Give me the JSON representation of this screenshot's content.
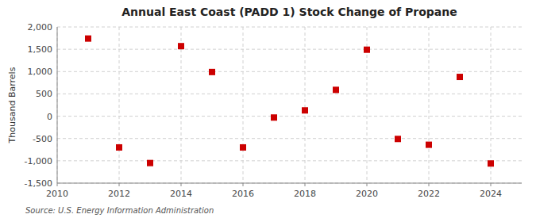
{
  "chart_data": {
    "type": "scatter",
    "title": "Annual East Coast (PADD 1) Stock Change of Propane",
    "y_label": "Thousand Barrels",
    "annotations": [
      "Source: U.S. Energy Information Administration"
    ],
    "x": [
      2011,
      2012,
      2013,
      2014,
      2015,
      2016,
      2017,
      2018,
      2019,
      2020,
      2021,
      2022,
      2023,
      2024
    ],
    "values": [
      1740,
      -700,
      -1050,
      1570,
      990,
      -700,
      -30,
      130,
      590,
      1490,
      -510,
      -640,
      880,
      -1060
    ],
    "color": "#cc0000",
    "marker": "square",
    "xlim": [
      2010,
      2025
    ],
    "ylim": [
      -1500,
      2000
    ],
    "xticks": [
      2010,
      2012,
      2014,
      2016,
      2018,
      2020,
      2022,
      2024
    ],
    "yticks": [
      {
        "value": -1500,
        "label": "-1,500"
      },
      {
        "value": -1000,
        "label": "-1,000"
      },
      -500,
      0,
      500,
      {
        "value": 1000,
        "label": "1,000"
      },
      {
        "value": 1500,
        "label": "1,500"
      },
      {
        "value": 2000,
        "label": "2,000"
      }
    ],
    "grid": true
  }
}
